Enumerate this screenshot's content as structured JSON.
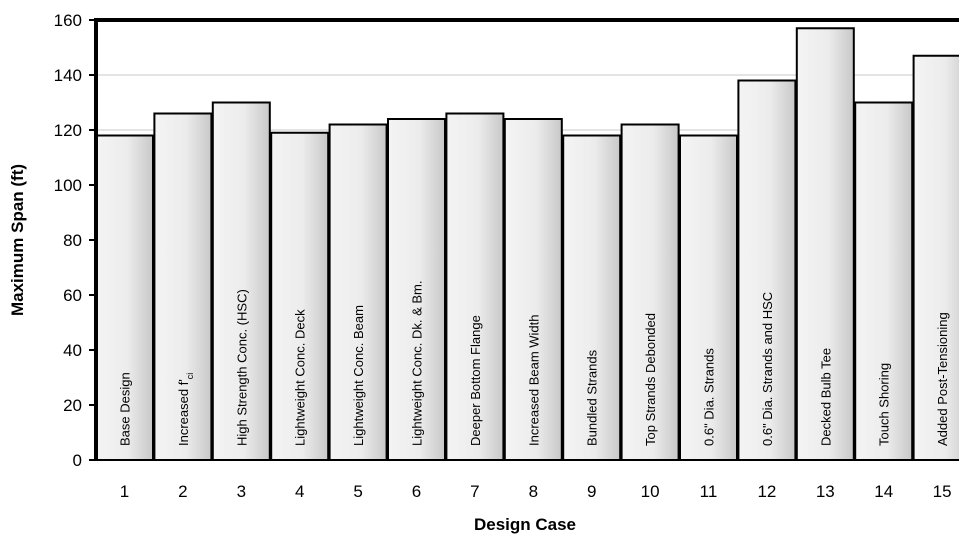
{
  "chart_data": {
    "type": "bar",
    "title": "",
    "xlabel": "Design Case",
    "ylabel": "Maximum Span (ft)",
    "ylim": [
      0,
      160
    ],
    "yticks": [
      0,
      20,
      40,
      60,
      80,
      100,
      120,
      140,
      160
    ],
    "grid": "horizontal",
    "categories": [
      "1",
      "2",
      "3",
      "4",
      "5",
      "6",
      "7",
      "8",
      "9",
      "10",
      "11",
      "12",
      "13",
      "14",
      "15"
    ],
    "values": [
      118,
      126,
      130,
      119,
      122,
      124,
      126,
      124,
      118,
      122,
      118,
      138,
      157,
      130,
      147
    ],
    "bar_labels": [
      {
        "text": "Base Design",
        "sub": ""
      },
      {
        "text": "Increased f'",
        "sub": "ci"
      },
      {
        "text": "High Strength Conc. (HSC)",
        "sub": ""
      },
      {
        "text": "Lightweight Conc. Deck",
        "sub": ""
      },
      {
        "text": "Lightweight Conc. Beam",
        "sub": ""
      },
      {
        "text": "Lightweight Conc. Dk. & Bm.",
        "sub": ""
      },
      {
        "text": "Deeper Bottom Flange",
        "sub": ""
      },
      {
        "text": "Increased Beam Width",
        "sub": ""
      },
      {
        "text": "Bundled Strands",
        "sub": ""
      },
      {
        "text": "Top Strands Debonded",
        "sub": ""
      },
      {
        "text": "0.6\" Dia. Strands",
        "sub": ""
      },
      {
        "text": "0.6\" Dia. Strands and HSC",
        "sub": ""
      },
      {
        "text": "Decked Bulb Tee",
        "sub": ""
      },
      {
        "text": "Touch Shoring",
        "sub": ""
      },
      {
        "text": "Added Post-Tensioning",
        "sub": ""
      }
    ],
    "colors": {
      "bar_fill_light": "#f4f4f4",
      "bar_fill_dark": "#c8c8c8",
      "bar_stroke": "#000000",
      "grid": "#c8c8c8",
      "frame": "#000000"
    }
  }
}
